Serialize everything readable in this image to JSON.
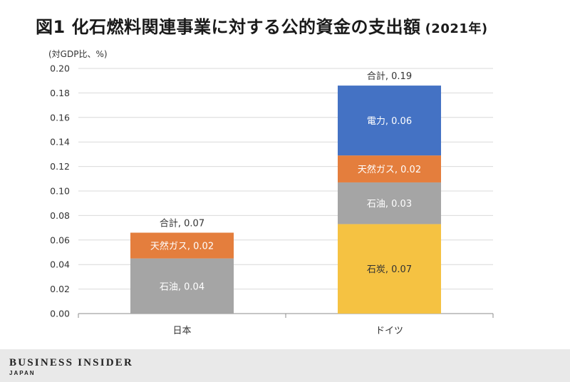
{
  "title": {
    "main": "図1 化石燃料関連事業に対する公的資金の支出額",
    "year": "(2021年)"
  },
  "footer": {
    "brand": "BUSINESS INSIDER",
    "sub": "JAPAN"
  },
  "chart_data": {
    "type": "bar",
    "stacked": true,
    "unit_label": "(対GDP比、%)",
    "categories": [
      "日本",
      "ドイツ"
    ],
    "ylim": [
      0,
      0.2
    ],
    "yticks": [
      "0.00",
      "0.02",
      "0.04",
      "0.06",
      "0.08",
      "0.10",
      "0.12",
      "0.14",
      "0.16",
      "0.18",
      "0.20"
    ],
    "grid": true,
    "series": [
      {
        "name": "石炭",
        "color": "#f5c242",
        "values": [
          0,
          0.073
        ],
        "labels": [
          "",
          "石炭, 0.07"
        ],
        "label_color": "#333333"
      },
      {
        "name": "石油",
        "color": "#a5a5a5",
        "values": [
          0.045,
          0.034
        ],
        "labels": [
          "石油, 0.04",
          "石油, 0.03"
        ],
        "label_color": "#ffffff"
      },
      {
        "name": "天然ガス",
        "color": "#e47e3d",
        "values": [
          0.021,
          0.022
        ],
        "labels": [
          "天然ガス, 0.02",
          "天然ガス, 0.02"
        ],
        "label_color": "#ffffff"
      },
      {
        "name": "電力",
        "color": "#4472c4",
        "values": [
          0,
          0.057
        ],
        "labels": [
          "",
          "電力, 0.06"
        ],
        "label_color": "#ffffff"
      }
    ],
    "totals": [
      "合計, 0.07",
      "合計, 0.19"
    ]
  }
}
